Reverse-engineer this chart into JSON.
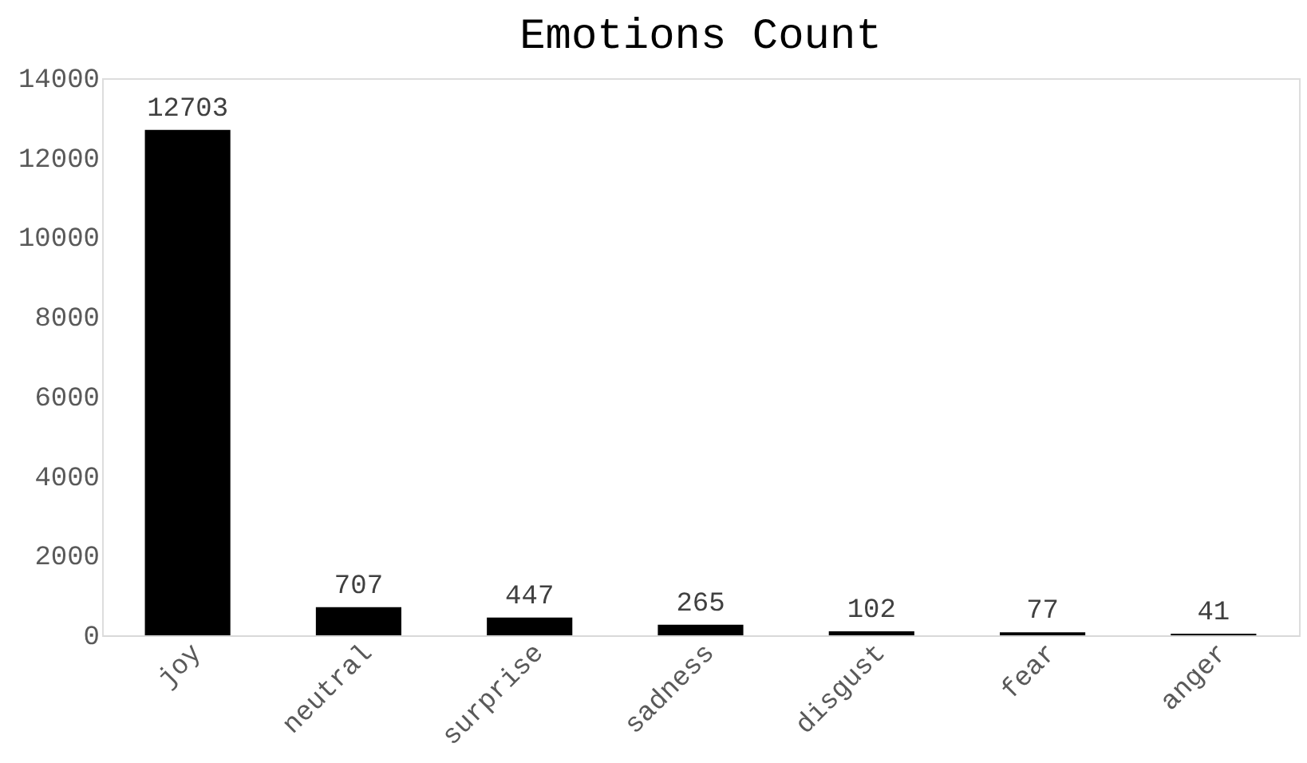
{
  "chart_data": {
    "type": "bar",
    "title": "Emotions Count",
    "categories": [
      "joy",
      "neutral",
      "surprise",
      "sadness",
      "disgust",
      "fear",
      "anger"
    ],
    "values": [
      12703,
      707,
      447,
      265,
      102,
      77,
      41
    ],
    "color": "#000000",
    "ylim": [
      0,
      14000
    ],
    "yticks": [
      0,
      2000,
      4000,
      6000,
      8000,
      10000,
      12000,
      14000
    ],
    "grid": false,
    "data_labels": true
  }
}
